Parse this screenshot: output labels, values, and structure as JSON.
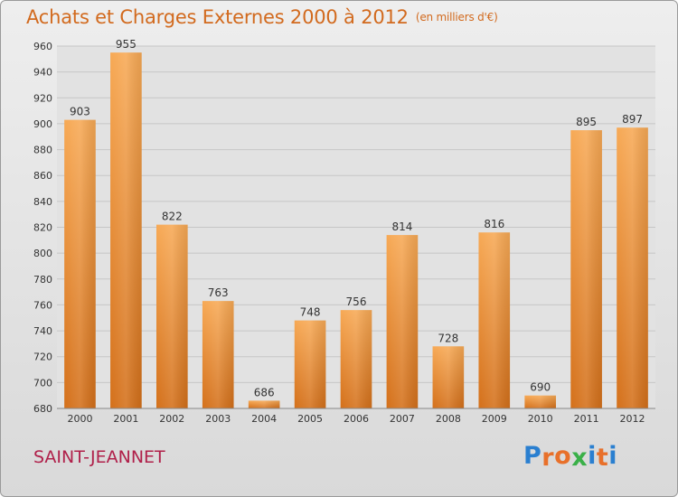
{
  "chart_data": {
    "type": "bar",
    "title": "Achats et Charges Externes 2000 à 2012",
    "subtitle": "(en milliers d'€)",
    "categories": [
      "2000",
      "2001",
      "2002",
      "2003",
      "2004",
      "2005",
      "2006",
      "2007",
      "2008",
      "2009",
      "2010",
      "2011",
      "2012"
    ],
    "values": [
      903,
      955,
      822,
      763,
      686,
      748,
      756,
      814,
      728,
      816,
      690,
      895,
      897
    ],
    "ylim": [
      680,
      960
    ],
    "yticks": [
      680,
      700,
      720,
      740,
      760,
      780,
      800,
      820,
      840,
      860,
      880,
      900,
      920,
      940,
      960
    ],
    "grid": true,
    "bar_color": "#f08a2e"
  },
  "footer": {
    "commune": "SAINT-JEANNET",
    "logo_letters": [
      "P",
      "r",
      "o",
      "x",
      "i",
      "t",
      "i"
    ],
    "logo_colors": [
      "#2a7fd0",
      "#e8702a",
      "#e8702a",
      "#3ab048",
      "#2a7fd0",
      "#e8702a",
      "#2a7fd0"
    ]
  }
}
